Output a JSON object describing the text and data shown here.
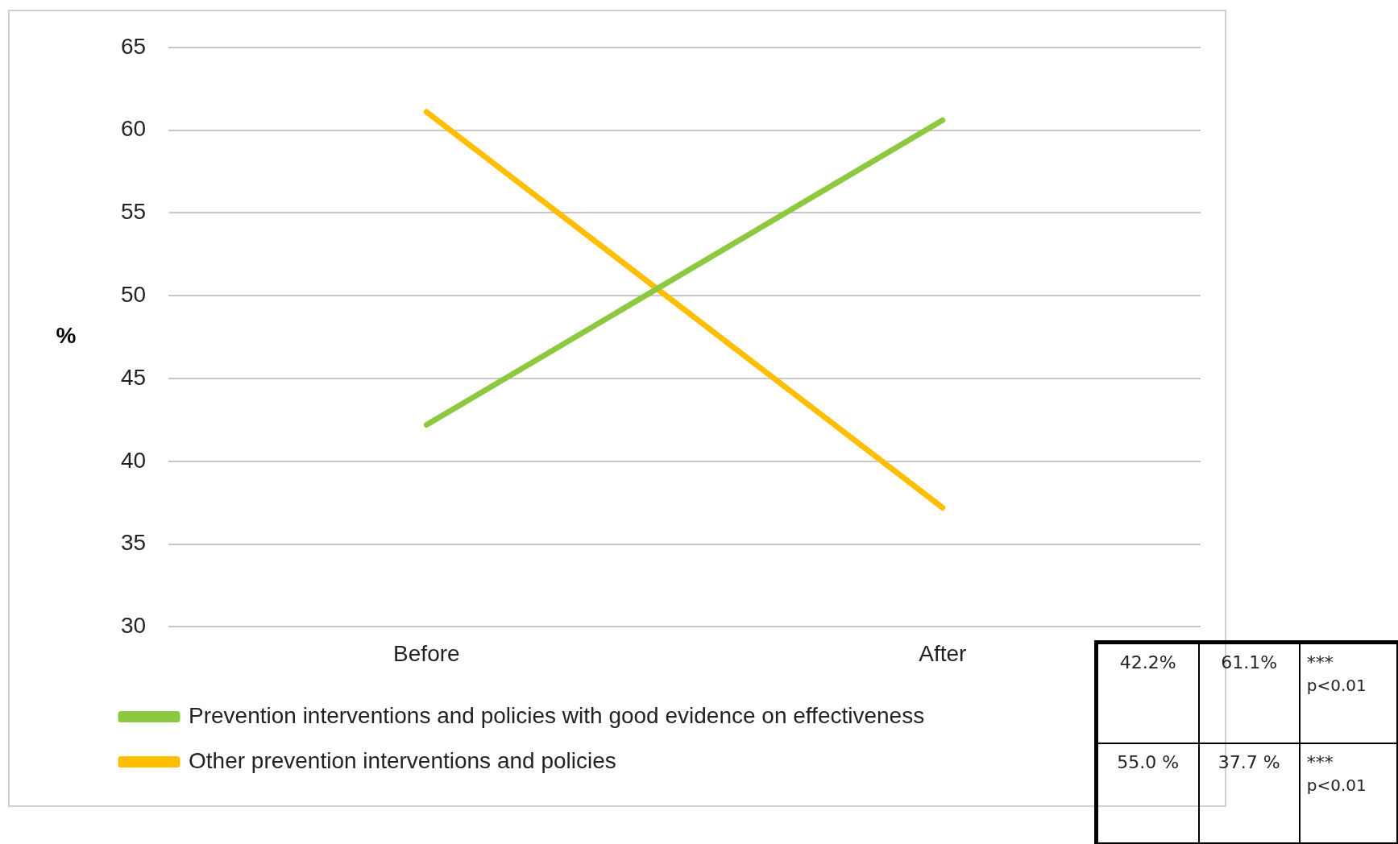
{
  "chart_data": {
    "type": "line",
    "ylabel": "%",
    "categories": [
      "Before",
      "After"
    ],
    "series": [
      {
        "name": "Prevention interventions and policies with good evidence on effectiveness",
        "color": "#8cc940",
        "values": [
          42.2,
          60.6
        ]
      },
      {
        "name": "Other prevention interventions and policies",
        "color": "#ffbf00",
        "values": [
          61.1,
          37.2
        ]
      }
    ],
    "ylim": [
      30,
      65
    ],
    "yticks": [
      30,
      35,
      40,
      45,
      50,
      55,
      60,
      65
    ],
    "grid": "y",
    "legend": "bottom",
    "marker": "none",
    "line_style": "solid",
    "annotations": [
      "42.2%",
      "61.1%",
      "***",
      "p<0.01",
      "55.0 %",
      "37.7 %",
      "***",
      "p<0.01"
    ]
  }
}
